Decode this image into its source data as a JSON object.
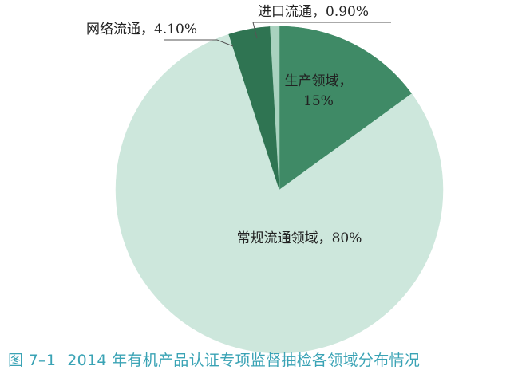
{
  "caption": {
    "number": "图 7–1",
    "text": "2014 年有机产品认证专项监督抽检各领域分布情况"
  },
  "chart_data": {
    "type": "pie",
    "title": "",
    "slices": [
      {
        "label": "生产领域",
        "value": 15,
        "display": [
          "生产领域，",
          "15%"
        ],
        "color": "#3f8a66"
      },
      {
        "label": "常规流通领域",
        "value": 80,
        "display": [
          "常规流通领域，80%"
        ],
        "color": "#cde7dc"
      },
      {
        "label": "网络流通",
        "value": 4.1,
        "display": [
          "网络流通，4.10%"
        ],
        "color": "#2f7452"
      },
      {
        "label": "进口流通",
        "value": 0.9,
        "display": [
          "进口流通，0.90%"
        ],
        "color": "#a9d2bf"
      }
    ],
    "start_angle_deg": 0,
    "direction": "clockwise",
    "legend": "none"
  }
}
